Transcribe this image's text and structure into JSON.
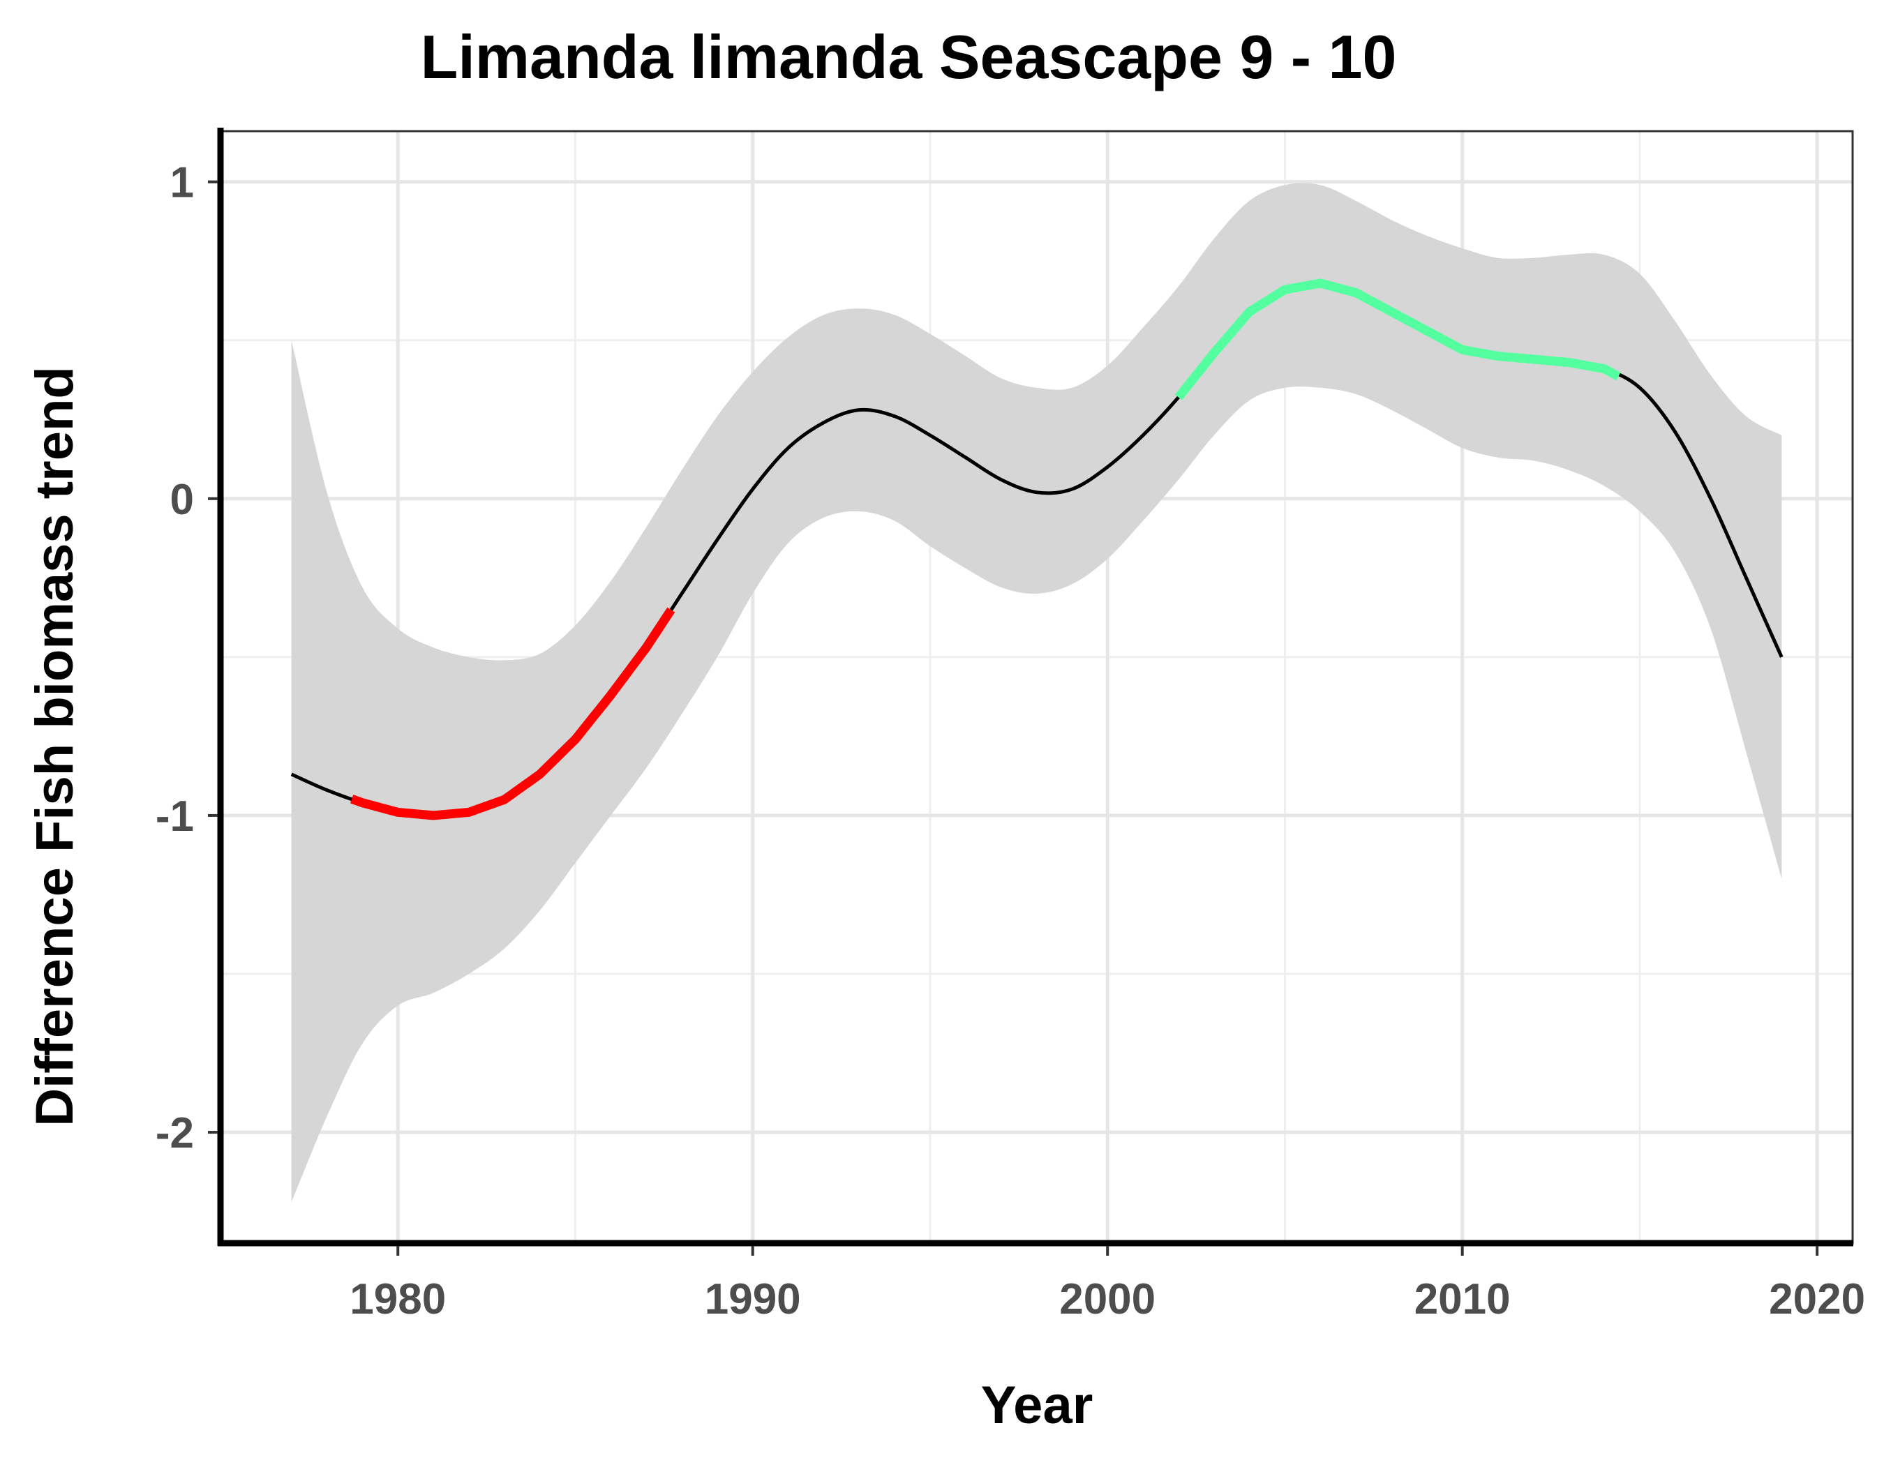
{
  "chart_data": {
    "type": "line",
    "title": "Limanda limanda Seascape 9 - 10",
    "xlabel": "Year",
    "ylabel": "Difference Fish biomass trend",
    "xlim": [
      1975,
      2021
    ],
    "ylim": [
      -2.35,
      1.16
    ],
    "x_ticks": [
      1980,
      1990,
      2000,
      2010,
      2020
    ],
    "x_tick_labels": [
      "1980",
      "1990",
      "2000",
      "2010",
      "2020"
    ],
    "y_ticks": [
      1,
      0,
      -1,
      -2
    ],
    "y_tick_labels": [
      "1",
      "0",
      "-1",
      "-2"
    ],
    "grid": true,
    "x": [
      1977,
      1978,
      1979,
      1980,
      1981,
      1982,
      1983,
      1984,
      1985,
      1986,
      1987,
      1988,
      1989,
      1990,
      1991,
      1992,
      1993,
      1994,
      1995,
      1996,
      1997,
      1998,
      1999,
      2000,
      2001,
      2002,
      2003,
      2004,
      2005,
      2006,
      2007,
      2008,
      2009,
      2010,
      2011,
      2012,
      2013,
      2014,
      2015,
      2016,
      2017,
      2018,
      2019
    ],
    "fit": [
      -0.87,
      -0.92,
      -0.96,
      -0.99,
      -1.0,
      -0.99,
      -0.95,
      -0.87,
      -0.76,
      -0.62,
      -0.47,
      -0.3,
      -0.13,
      0.03,
      0.16,
      0.24,
      0.28,
      0.26,
      0.2,
      0.13,
      0.06,
      0.02,
      0.03,
      0.1,
      0.2,
      0.32,
      0.46,
      0.59,
      0.66,
      0.68,
      0.65,
      0.59,
      0.53,
      0.47,
      0.45,
      0.44,
      0.43,
      0.41,
      0.35,
      0.21,
      0.0,
      -0.25,
      -0.5
    ],
    "lower": [
      -2.22,
      -1.95,
      -1.72,
      -1.6,
      -1.56,
      -1.5,
      -1.42,
      -1.3,
      -1.15,
      -1.0,
      -0.85,
      -0.68,
      -0.5,
      -0.3,
      -0.14,
      -0.06,
      -0.04,
      -0.07,
      -0.15,
      -0.22,
      -0.28,
      -0.3,
      -0.27,
      -0.19,
      -0.07,
      0.06,
      0.2,
      0.31,
      0.35,
      0.35,
      0.33,
      0.28,
      0.22,
      0.16,
      0.13,
      0.12,
      0.09,
      0.04,
      -0.04,
      -0.17,
      -0.41,
      -0.8,
      -1.2
    ],
    "upper": [
      0.5,
      0.02,
      -0.28,
      -0.41,
      -0.47,
      -0.5,
      -0.51,
      -0.49,
      -0.4,
      -0.26,
      -0.09,
      0.09,
      0.26,
      0.4,
      0.51,
      0.58,
      0.6,
      0.58,
      0.52,
      0.45,
      0.38,
      0.35,
      0.35,
      0.42,
      0.54,
      0.67,
      0.82,
      0.94,
      0.99,
      0.99,
      0.94,
      0.88,
      0.83,
      0.79,
      0.76,
      0.76,
      0.77,
      0.77,
      0.71,
      0.56,
      0.39,
      0.26,
      0.2
    ],
    "segments": [
      {
        "type": "decreasing",
        "x_start": 1978.7,
        "x_end": 1987.7,
        "color": "#ff0000"
      },
      {
        "type": "increasing",
        "x_start": 2002.0,
        "x_end": 2014.4,
        "color": "#54ff9f"
      }
    ],
    "colors": {
      "ribbon": "#d6d6d6",
      "line": "#000000"
    }
  }
}
